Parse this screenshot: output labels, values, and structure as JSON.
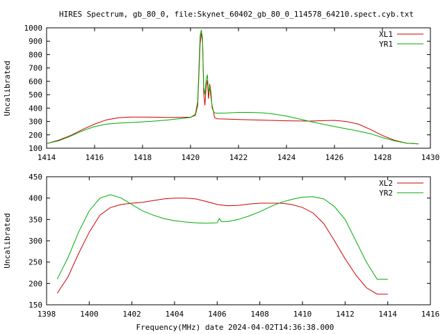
{
  "title": "HIRES Spectrum, gb_80_0, file:Skynet_60402_gb_80_0_114578_64210.spect.cyb.txt",
  "xlabel": "Frequency(MHz) date 2024-04-02T14:36:38.000",
  "colors": {
    "red": "#cc0000",
    "green": "#00aa00",
    "axis": "#000000"
  },
  "chart_data": [
    {
      "type": "line",
      "ylabel": "Uncalibrated",
      "xlim": [
        1414,
        1430
      ],
      "ylim": [
        100,
        1000
      ],
      "xticks": [
        1414,
        1416,
        1418,
        1420,
        1422,
        1424,
        1426,
        1428,
        1430
      ],
      "yticks": [
        100,
        200,
        300,
        400,
        500,
        600,
        700,
        800,
        900,
        1000
      ],
      "legend": "top-right",
      "grid": false,
      "series": [
        {
          "name": "XL1",
          "color": "#cc0000",
          "x": [
            1414.0,
            1414.5,
            1415.0,
            1415.5,
            1416.0,
            1416.5,
            1417.0,
            1417.5,
            1418.0,
            1418.5,
            1419.0,
            1419.5,
            1420.0,
            1420.2,
            1420.3,
            1420.4,
            1420.45,
            1420.5,
            1420.55,
            1420.6,
            1420.65,
            1420.7,
            1420.75,
            1420.8,
            1420.85,
            1420.9,
            1420.95,
            1421.0,
            1421.1,
            1421.5,
            1422.0,
            1423.0,
            1424.0,
            1425.0,
            1425.5,
            1426.0,
            1426.5,
            1427.0,
            1427.5,
            1428.0,
            1428.5,
            1429.0,
            1429.5
          ],
          "y": [
            135,
            160,
            195,
            240,
            280,
            312,
            328,
            333,
            333,
            332,
            330,
            330,
            332,
            345,
            420,
            880,
            960,
            900,
            510,
            420,
            560,
            610,
            470,
            580,
            520,
            400,
            380,
            330,
            320,
            318,
            315,
            310,
            305,
            303,
            306,
            308,
            300,
            280,
            240,
            195,
            160,
            138,
            132
          ]
        },
        {
          "name": "YR1",
          "color": "#00aa00",
          "x": [
            1414.0,
            1414.5,
            1415.0,
            1415.5,
            1416.0,
            1416.5,
            1417.0,
            1417.5,
            1418.0,
            1418.5,
            1419.0,
            1419.5,
            1420.0,
            1420.2,
            1420.3,
            1420.4,
            1420.45,
            1420.5,
            1420.55,
            1420.6,
            1420.65,
            1420.7,
            1420.75,
            1420.8,
            1420.85,
            1420.9,
            1420.95,
            1421.0,
            1421.1,
            1421.5,
            1422.0,
            1422.5,
            1423.0,
            1423.5,
            1424.0,
            1424.5,
            1425.0,
            1425.5,
            1426.0,
            1426.5,
            1427.0,
            1427.5,
            1428.0,
            1428.5,
            1429.0,
            1429.5
          ],
          "y": [
            135,
            155,
            190,
            230,
            262,
            280,
            288,
            292,
            297,
            303,
            310,
            320,
            330,
            355,
            450,
            940,
            985,
            920,
            560,
            500,
            610,
            650,
            520,
            560,
            480,
            420,
            380,
            365,
            362,
            363,
            368,
            368,
            365,
            355,
            340,
            320,
            300,
            280,
            262,
            245,
            228,
            208,
            180,
            155,
            138,
            132
          ]
        }
      ]
    },
    {
      "type": "line",
      "ylabel": "Uncalibrated",
      "xlim": [
        1398,
        1416
      ],
      "ylim": [
        150,
        450
      ],
      "xticks": [
        1398,
        1400,
        1402,
        1404,
        1406,
        1408,
        1410,
        1412,
        1414,
        1416
      ],
      "yticks": [
        150,
        200,
        250,
        300,
        350,
        400,
        450
      ],
      "legend": "top-right",
      "grid": false,
      "series": [
        {
          "name": "XL2",
          "color": "#cc0000",
          "x": [
            1398.5,
            1399.0,
            1399.5,
            1400.0,
            1400.5,
            1401.0,
            1401.5,
            1402.0,
            1402.5,
            1403.0,
            1403.5,
            1404.0,
            1404.5,
            1405.0,
            1405.5,
            1406.0,
            1406.5,
            1407.0,
            1407.5,
            1408.0,
            1408.5,
            1409.0,
            1409.5,
            1410.0,
            1410.5,
            1411.0,
            1411.5,
            1412.0,
            1412.5,
            1413.0,
            1413.5,
            1414.0
          ],
          "y": [
            177,
            215,
            270,
            320,
            360,
            378,
            385,
            388,
            390,
            394,
            398,
            400,
            400,
            398,
            392,
            385,
            382,
            383,
            386,
            388,
            388,
            388,
            385,
            378,
            365,
            340,
            300,
            258,
            220,
            190,
            175,
            175
          ]
        },
        {
          "name": "YR2",
          "color": "#00aa00",
          "x": [
            1398.5,
            1399.0,
            1399.5,
            1400.0,
            1400.5,
            1401.0,
            1401.5,
            1402.0,
            1402.5,
            1403.0,
            1403.5,
            1404.0,
            1404.5,
            1405.0,
            1405.5,
            1406.0,
            1406.1,
            1406.2,
            1406.5,
            1407.0,
            1407.5,
            1408.0,
            1408.5,
            1409.0,
            1409.5,
            1410.0,
            1410.5,
            1411.0,
            1411.5,
            1412.0,
            1412.5,
            1413.0,
            1413.5,
            1414.0
          ],
          "y": [
            210,
            260,
            320,
            370,
            400,
            408,
            400,
            385,
            370,
            360,
            352,
            347,
            344,
            342,
            341,
            342,
            352,
            345,
            345,
            350,
            358,
            368,
            380,
            390,
            397,
            402,
            403,
            398,
            380,
            350,
            300,
            250,
            210,
            210
          ]
        }
      ]
    }
  ]
}
